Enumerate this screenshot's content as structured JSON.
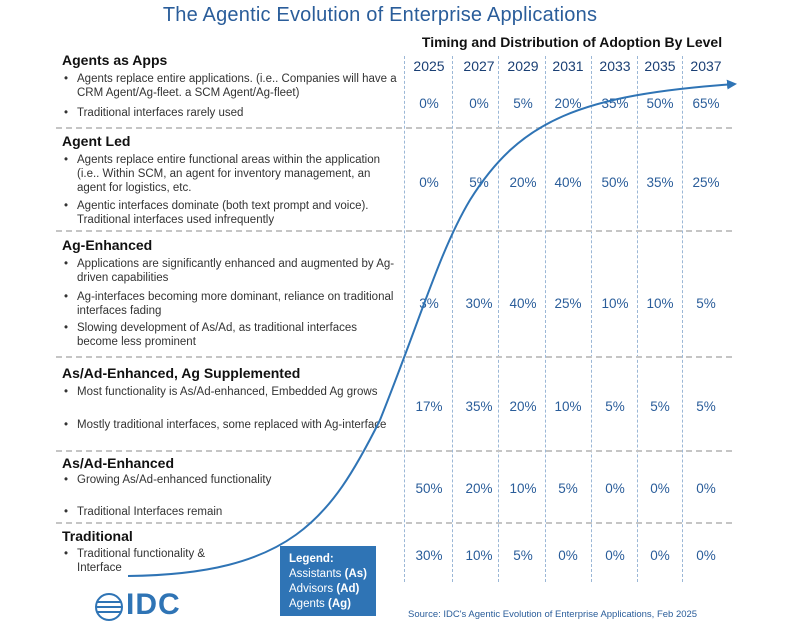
{
  "title": "The Agentic Evolution of Enterprise Applications",
  "adoption_title": "Timing and Distribution of Adoption By Level",
  "years": [
    "2025",
    "2027",
    "2029",
    "2031",
    "2033",
    "2035",
    "2037"
  ],
  "levels": [
    {
      "name": "Agents as Apps",
      "bullets": [
        "Agents replace entire applications.  (i.e.. Companies will have a CRM Agent/Ag-fleet.  a SCM Agent/Ag-fleet)",
        "Traditional interfaces rarely used"
      ],
      "values": [
        "0%",
        "0%",
        "5%",
        "20%",
        "35%",
        "50%",
        "65%"
      ]
    },
    {
      "name": "Agent Led",
      "bullets": [
        "Agents replace entire functional areas within the application (i.e.. Within SCM, an agent for inventory management, an agent for logistics, etc.",
        "Agentic interfaces dominate (both text prompt and voice).  Traditional interfaces used infrequently"
      ],
      "values": [
        "0%",
        "5%",
        "20%",
        "40%",
        "50%",
        "35%",
        "25%"
      ]
    },
    {
      "name": "Ag-Enhanced",
      "bullets": [
        "Applications are significantly enhanced and augmented by Ag-driven capabilities",
        "Ag-interfaces becoming more dominant, reliance on traditional interfaces fading",
        "Slowing development of As/Ad, as traditional interfaces become less prominent"
      ],
      "values": [
        "3%",
        "30%",
        "40%",
        "25%",
        "10%",
        "10%",
        "5%"
      ]
    },
    {
      "name": "As/Ad-Enhanced, Ag Supplemented",
      "bullets": [
        "Most functionality is As/Ad-enhanced, Embedded Ag grows",
        "Mostly traditional interfaces, some replaced with Ag-interface"
      ],
      "values": [
        "17%",
        "35%",
        "20%",
        "10%",
        "5%",
        "5%",
        "5%"
      ]
    },
    {
      "name": "As/Ad-Enhanced",
      "bullets": [
        "Growing As/Ad-enhanced functionality",
        "Traditional Interfaces remain"
      ],
      "values": [
        "50%",
        "20%",
        "10%",
        "5%",
        "0%",
        "0%",
        "0%"
      ]
    },
    {
      "name": "Traditional",
      "bullets": [
        "Traditional functionality & Interface"
      ],
      "values": [
        "30%",
        "10%",
        "5%",
        "0%",
        "0%",
        "0%",
        "0%"
      ]
    }
  ],
  "legend": {
    "title": "Legend:",
    "items": [
      {
        "label": "Assistants",
        "abbr": "(As)"
      },
      {
        "label": "Advisors",
        "abbr": "(Ad)"
      },
      {
        "label": "Agents",
        "abbr": "(Ag)"
      }
    ]
  },
  "logo": "IDC",
  "source": "Source: IDC's Agentic Evolution of Enterprise Applications,  Feb 2025",
  "colors": {
    "accent": "#2f74b5",
    "title": "#2a5d9a",
    "values": "#2a5d9a"
  },
  "bullet_glyph": "•"
}
